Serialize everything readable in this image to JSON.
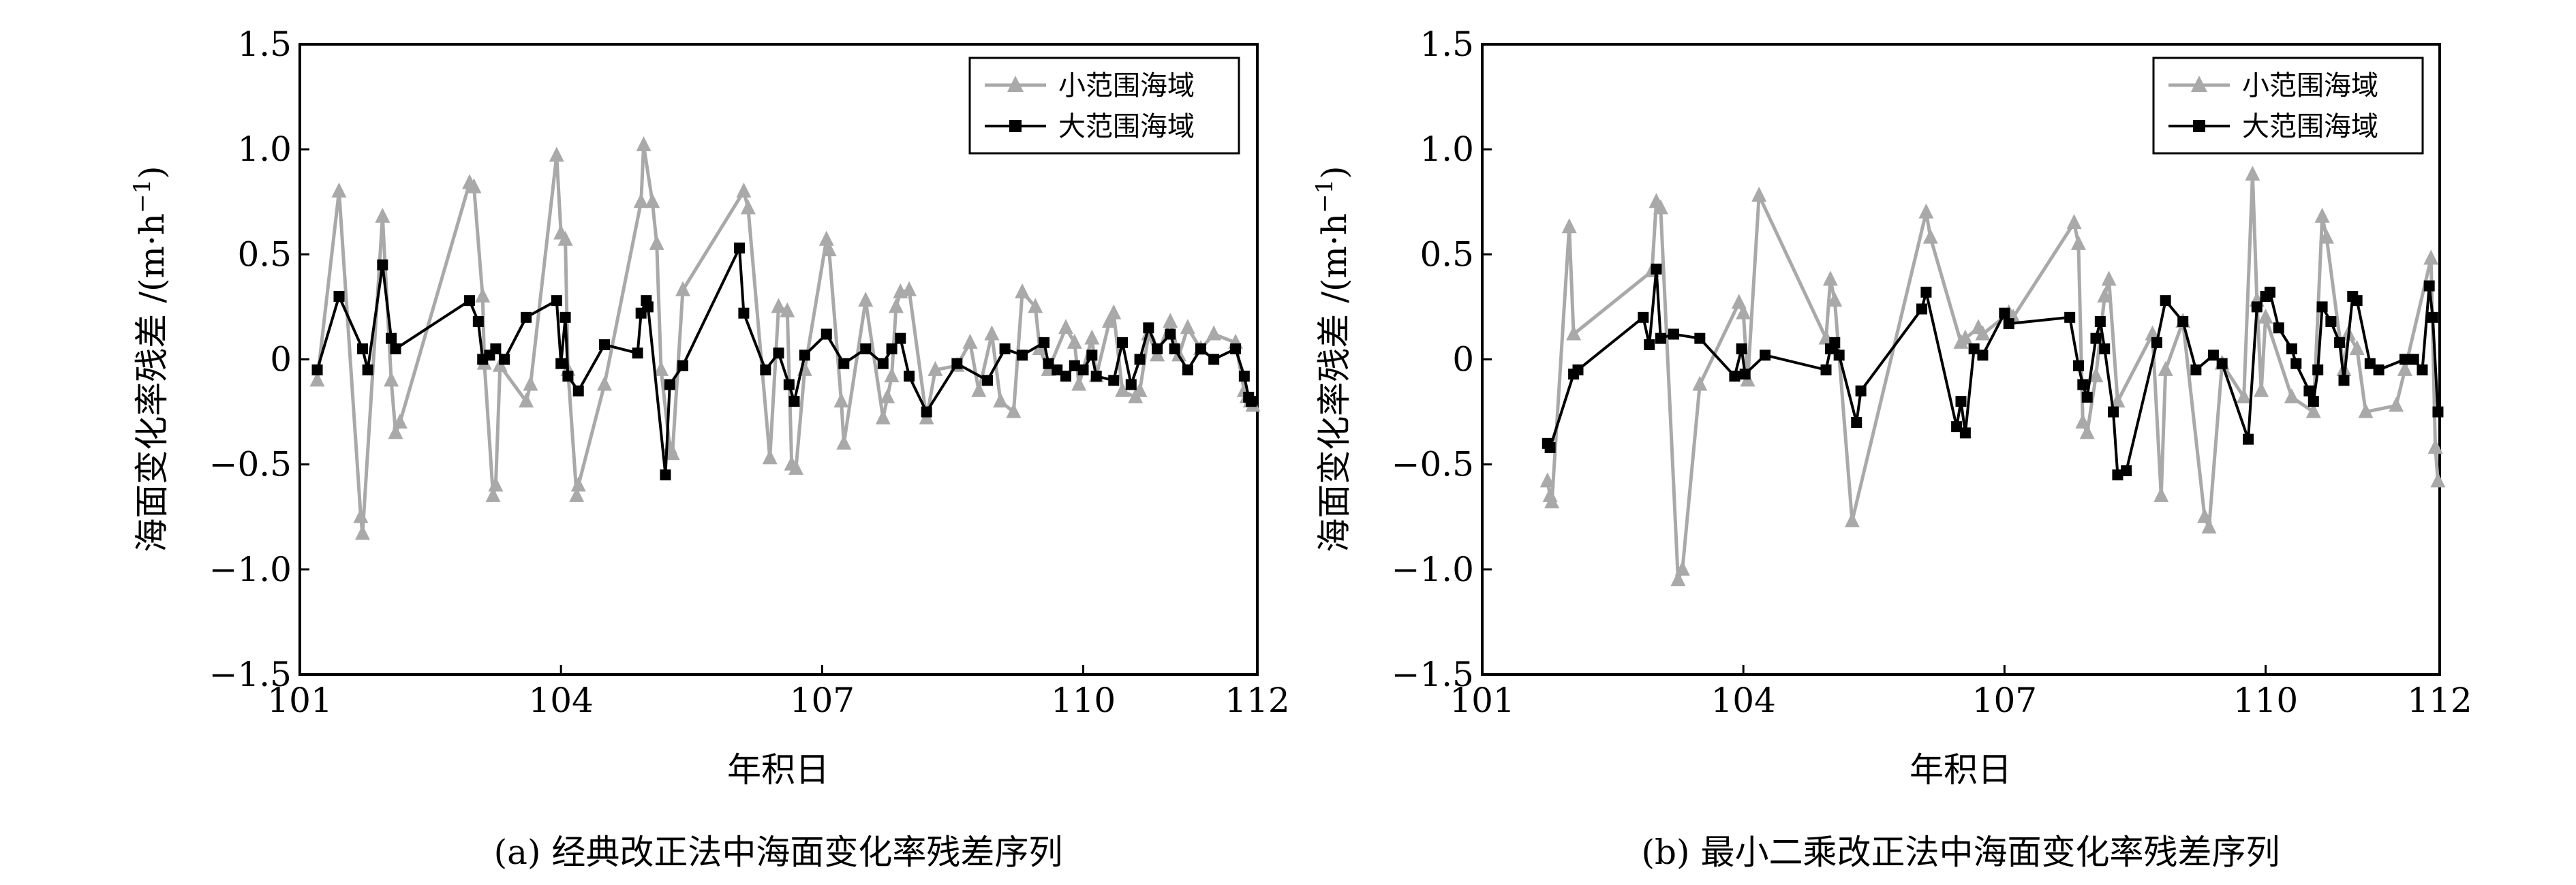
{
  "figure_captions": [
    "(a) 经典改正法中海面变化率残差序列",
    "(b) 最小二乘改正法中海面变化率残差序列"
  ],
  "colors": {
    "small_area": "#a9a9a9",
    "large_area": "#000000",
    "axis": "#000000"
  },
  "chart_data": [
    {
      "type": "line",
      "panel": "a",
      "title": "",
      "caption": "(a) 经典改正法中海面变化率残差序列",
      "xlabel": "年积日",
      "ylabel": "海面变化率残差 /(m·h⁻¹)",
      "ylabel_main": "海面变化率残差 /(m·h",
      "ylabel_sup": "−1",
      "ylabel_close": ")",
      "xlim": [
        101,
        112
      ],
      "ylim": [
        -1.5,
        1.5
      ],
      "xticks": [
        101,
        104,
        107,
        110,
        112
      ],
      "xtick_labels": [
        "101",
        "104",
        "107",
        "110",
        "112"
      ],
      "yticks": [
        -1.5,
        -1.0,
        -0.5,
        0,
        0.5,
        1.0,
        1.5
      ],
      "ytick_labels": [
        "−1.5",
        "−1.0",
        "−0.5",
        "0",
        "0.5",
        "1.0",
        "1.5"
      ],
      "grid": false,
      "legend_position": "top-right",
      "series": [
        {
          "name": "小范围海域",
          "color": "#a9a9a9",
          "marker": "triangle",
          "x": [
            101.2,
            101.45,
            101.7,
            101.72,
            101.95,
            102.05,
            102.1,
            102.15,
            102.95,
            103.0,
            103.1,
            103.12,
            103.22,
            103.25,
            103.3,
            103.6,
            103.65,
            103.95,
            104.0,
            104.05,
            104.08,
            104.18,
            104.2,
            104.5,
            104.92,
            104.95,
            105.05,
            105.1,
            105.15,
            105.25,
            105.28,
            105.4,
            106.1,
            106.15,
            106.4,
            106.5,
            106.6,
            106.65,
            106.7,
            106.8,
            107.05,
            107.08,
            107.22,
            107.25,
            107.5,
            107.7,
            107.75,
            107.8,
            107.85,
            107.9,
            108.0,
            108.2,
            108.3,
            108.55,
            108.7,
            108.8,
            108.95,
            109.05,
            109.2,
            109.3,
            109.45,
            109.5,
            109.6,
            109.8,
            109.9,
            109.95,
            110.1,
            110.15,
            110.3,
            110.35,
            110.45,
            110.6,
            110.65,
            110.75,
            110.85,
            111.0,
            111.1,
            111.2,
            111.35,
            111.5,
            111.75,
            111.85,
            111.88,
            111.92,
            111.95
          ],
          "y": [
            -0.1,
            0.8,
            -0.75,
            -0.83,
            0.68,
            -0.1,
            -0.35,
            -0.3,
            0.84,
            0.82,
            0.3,
            -0.02,
            -0.65,
            -0.6,
            -0.03,
            -0.2,
            -0.12,
            0.97,
            0.6,
            0.57,
            -0.05,
            -0.65,
            -0.6,
            -0.12,
            0.75,
            1.02,
            0.75,
            0.55,
            -0.05,
            -0.42,
            -0.45,
            0.33,
            0.8,
            0.72,
            -0.47,
            0.25,
            0.23,
            -0.5,
            -0.52,
            -0.05,
            0.57,
            0.52,
            -0.2,
            -0.4,
            0.28,
            -0.28,
            -0.18,
            -0.08,
            0.25,
            0.32,
            0.33,
            -0.28,
            -0.05,
            -0.03,
            0.08,
            -0.15,
            0.12,
            -0.2,
            -0.25,
            0.32,
            0.25,
            0.05,
            -0.05,
            0.15,
            0.08,
            -0.12,
            0.1,
            -0.08,
            0.18,
            0.22,
            -0.15,
            -0.18,
            -0.15,
            0.12,
            0.02,
            0.18,
            0.02,
            0.15,
            0.05,
            0.12,
            0.08,
            -0.15,
            -0.18,
            -0.2,
            -0.22
          ]
        },
        {
          "name": "大范围海域",
          "color": "#000000",
          "marker": "square",
          "x": [
            101.2,
            101.45,
            101.72,
            101.78,
            101.95,
            102.05,
            102.1,
            102.95,
            103.05,
            103.1,
            103.18,
            103.25,
            103.35,
            103.6,
            103.95,
            104.0,
            104.05,
            104.08,
            104.2,
            104.5,
            104.88,
            104.92,
            104.98,
            105.0,
            105.2,
            105.25,
            105.4,
            106.05,
            106.1,
            106.35,
            106.5,
            106.62,
            106.68,
            106.8,
            107.05,
            107.25,
            107.5,
            107.7,
            107.8,
            107.9,
            108.0,
            108.2,
            108.55,
            108.9,
            109.1,
            109.3,
            109.55,
            109.6,
            109.7,
            109.8,
            109.9,
            110.0,
            110.1,
            110.15,
            110.35,
            110.45,
            110.55,
            110.65,
            110.75,
            110.85,
            111.0,
            111.05,
            111.2,
            111.35,
            111.5,
            111.75,
            111.85,
            111.9,
            111.93
          ],
          "y": [
            -0.05,
            0.3,
            0.05,
            -0.05,
            0.45,
            0.1,
            0.05,
            0.28,
            0.18,
            0.0,
            0.02,
            0.05,
            0.0,
            0.2,
            0.28,
            -0.02,
            0.2,
            -0.08,
            -0.15,
            0.07,
            0.03,
            0.22,
            0.28,
            0.25,
            -0.55,
            -0.12,
            -0.03,
            0.53,
            0.22,
            -0.05,
            0.03,
            -0.12,
            -0.2,
            0.02,
            0.12,
            -0.02,
            0.05,
            -0.02,
            0.05,
            0.1,
            -0.08,
            -0.25,
            -0.02,
            -0.1,
            0.05,
            0.02,
            0.08,
            -0.02,
            -0.05,
            -0.08,
            -0.03,
            -0.05,
            0.02,
            -0.08,
            -0.1,
            0.08,
            -0.12,
            0.0,
            0.15,
            0.05,
            0.12,
            0.05,
            -0.05,
            0.05,
            0.0,
            0.05,
            -0.08,
            -0.18,
            -0.2
          ]
        }
      ]
    },
    {
      "type": "line",
      "panel": "b",
      "title": "",
      "caption": "(b) 最小二乘改正法中海面变化率残差序列",
      "xlabel": "年积日",
      "ylabel": "海面变化率残差 /(m·h⁻¹)",
      "ylabel_main": "海面变化率残差 /(m·h",
      "ylabel_sup": "−1",
      "ylabel_close": ")",
      "xlim": [
        101,
        112
      ],
      "ylim": [
        -1.5,
        1.5
      ],
      "xticks": [
        101,
        104,
        107,
        110,
        112
      ],
      "xtick_labels": [
        "101",
        "104",
        "107",
        "110",
        "112"
      ],
      "yticks": [
        -1.5,
        -1.0,
        -0.5,
        0,
        0.5,
        1.0,
        1.5
      ],
      "ytick_labels": [
        "−1.5",
        "−1.0",
        "−0.5",
        "0",
        "0.5",
        "1.0",
        "1.5"
      ],
      "grid": false,
      "legend_position": "top-right",
      "series": [
        {
          "name": "小范围海域",
          "color": "#a9a9a9",
          "marker": "triangle",
          "x": [
            101.75,
            101.78,
            101.8,
            102.0,
            102.05,
            102.95,
            103.0,
            103.05,
            103.25,
            103.3,
            103.5,
            103.95,
            104.0,
            104.05,
            104.18,
            104.95,
            105.0,
            105.05,
            105.25,
            106.1,
            106.15,
            106.5,
            106.55,
            106.7,
            106.75,
            107.05,
            107.1,
            107.8,
            107.85,
            107.9,
            107.95,
            108.05,
            108.15,
            108.2,
            108.3,
            108.7,
            108.8,
            108.85,
            109.05,
            109.3,
            109.35,
            109.5,
            109.75,
            109.85,
            109.9,
            109.95,
            110.0,
            110.3,
            110.55,
            110.65,
            110.7,
            110.9,
            110.95,
            111.05,
            111.15,
            111.5,
            111.6,
            111.9,
            111.95,
            111.98
          ],
          "y": [
            -0.58,
            -0.65,
            -0.68,
            0.63,
            0.12,
            0.42,
            0.75,
            0.72,
            -1.05,
            -1.0,
            -0.12,
            0.27,
            0.22,
            -0.1,
            0.78,
            0.1,
            0.38,
            0.28,
            -0.77,
            0.7,
            0.58,
            0.08,
            0.1,
            0.15,
            0.12,
            0.22,
            0.2,
            0.65,
            0.55,
            -0.3,
            -0.35,
            -0.08,
            0.3,
            0.38,
            -0.2,
            0.12,
            -0.65,
            -0.05,
            0.18,
            -0.75,
            -0.8,
            -0.02,
            -0.18,
            0.88,
            0.28,
            -0.15,
            0.2,
            -0.18,
            -0.25,
            0.68,
            0.58,
            -0.05,
            0.12,
            0.05,
            -0.25,
            -0.22,
            -0.05,
            0.48,
            -0.42,
            -0.58
          ]
        },
        {
          "name": "大范围海域",
          "color": "#000000",
          "marker": "square",
          "x": [
            101.75,
            101.78,
            102.05,
            102.1,
            102.85,
            102.92,
            103.0,
            103.05,
            103.2,
            103.5,
            103.9,
            103.98,
            104.02,
            104.25,
            104.95,
            105.0,
            105.05,
            105.1,
            105.3,
            105.35,
            106.05,
            106.1,
            106.45,
            106.5,
            106.55,
            106.65,
            106.75,
            107.0,
            107.05,
            107.75,
            107.85,
            107.9,
            107.95,
            108.05,
            108.1,
            108.15,
            108.25,
            108.3,
            108.4,
            108.75,
            108.85,
            109.05,
            109.2,
            109.4,
            109.5,
            109.8,
            109.9,
            110.0,
            110.05,
            110.15,
            110.3,
            110.35,
            110.5,
            110.55,
            110.6,
            110.65,
            110.75,
            110.85,
            110.9,
            111.0,
            111.05,
            111.2,
            111.3,
            111.6,
            111.7,
            111.8,
            111.88,
            111.92,
            111.98
          ],
          "y": [
            -0.4,
            -0.42,
            -0.07,
            -0.05,
            0.2,
            0.07,
            0.43,
            0.1,
            0.12,
            0.1,
            -0.08,
            0.05,
            -0.07,
            0.02,
            -0.05,
            0.05,
            0.08,
            0.02,
            -0.3,
            -0.15,
            0.24,
            0.32,
            -0.32,
            -0.2,
            -0.35,
            0.05,
            0.02,
            0.22,
            0.17,
            0.2,
            -0.03,
            -0.12,
            -0.18,
            0.1,
            0.18,
            0.05,
            -0.25,
            -0.55,
            -0.53,
            0.08,
            0.28,
            0.18,
            -0.05,
            0.02,
            -0.02,
            -0.38,
            0.25,
            0.3,
            0.32,
            0.15,
            0.05,
            -0.02,
            -0.15,
            -0.2,
            -0.05,
            0.25,
            0.18,
            0.08,
            -0.1,
            0.3,
            0.28,
            -0.02,
            -0.05,
            0.0,
            0.0,
            -0.05,
            0.35,
            0.2,
            -0.25
          ]
        }
      ]
    }
  ]
}
